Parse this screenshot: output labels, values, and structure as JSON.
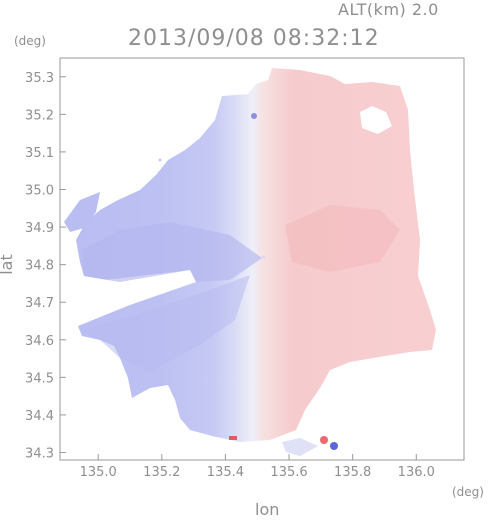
{
  "header": {
    "altitude": "ALT(km) 2.0",
    "timestamp": "2013/09/08 08:32:12"
  },
  "axes": {
    "y_unit": "(deg)",
    "x_unit": "(deg)",
    "x_title": "lon",
    "y_title": "lat",
    "x_ticks": [
      "135.0",
      "135.2",
      "135.4",
      "135.6",
      "135.8",
      "136.0"
    ],
    "y_ticks": [
      "35.3",
      "35.2",
      "35.1",
      "35.0",
      "34.9",
      "34.8",
      "34.7",
      "34.6",
      "34.5",
      "34.4",
      "34.3"
    ]
  },
  "map": {
    "xlim": [
      134.88,
      136.15
    ],
    "ylim": [
      34.28,
      35.35
    ],
    "radar_center": {
      "lon": 135.52,
      "lat": 34.82
    },
    "colors": {
      "approaching": "#b8bcf0",
      "receding": "#f6c6c8",
      "neutral": "#eceef8"
    }
  }
}
